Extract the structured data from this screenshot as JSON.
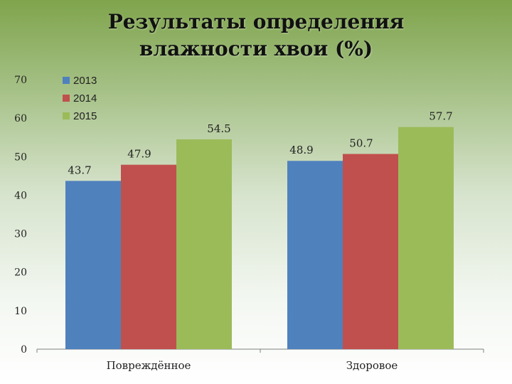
{
  "chart_data": {
    "type": "bar",
    "title_lines": [
      "Результаты определения",
      "влажности хвои (%)"
    ],
    "categories": [
      "Повреждённое",
      "Здоровое"
    ],
    "series": [
      {
        "name": "2013",
        "values": [
          43.7,
          48.9
        ],
        "color": "#4f81bd"
      },
      {
        "name": "2014",
        "values": [
          47.9,
          50.7
        ],
        "color": "#c0504d"
      },
      {
        "name": "2015",
        "values": [
          54.5,
          57.7
        ],
        "color": "#9bbb59"
      }
    ],
    "ylim": [
      0,
      70
    ],
    "yticks": [
      0,
      10,
      20,
      30,
      40,
      50,
      60,
      70
    ],
    "xlabel": "",
    "ylabel": "",
    "legend_position": "top-left",
    "grid": false
  }
}
